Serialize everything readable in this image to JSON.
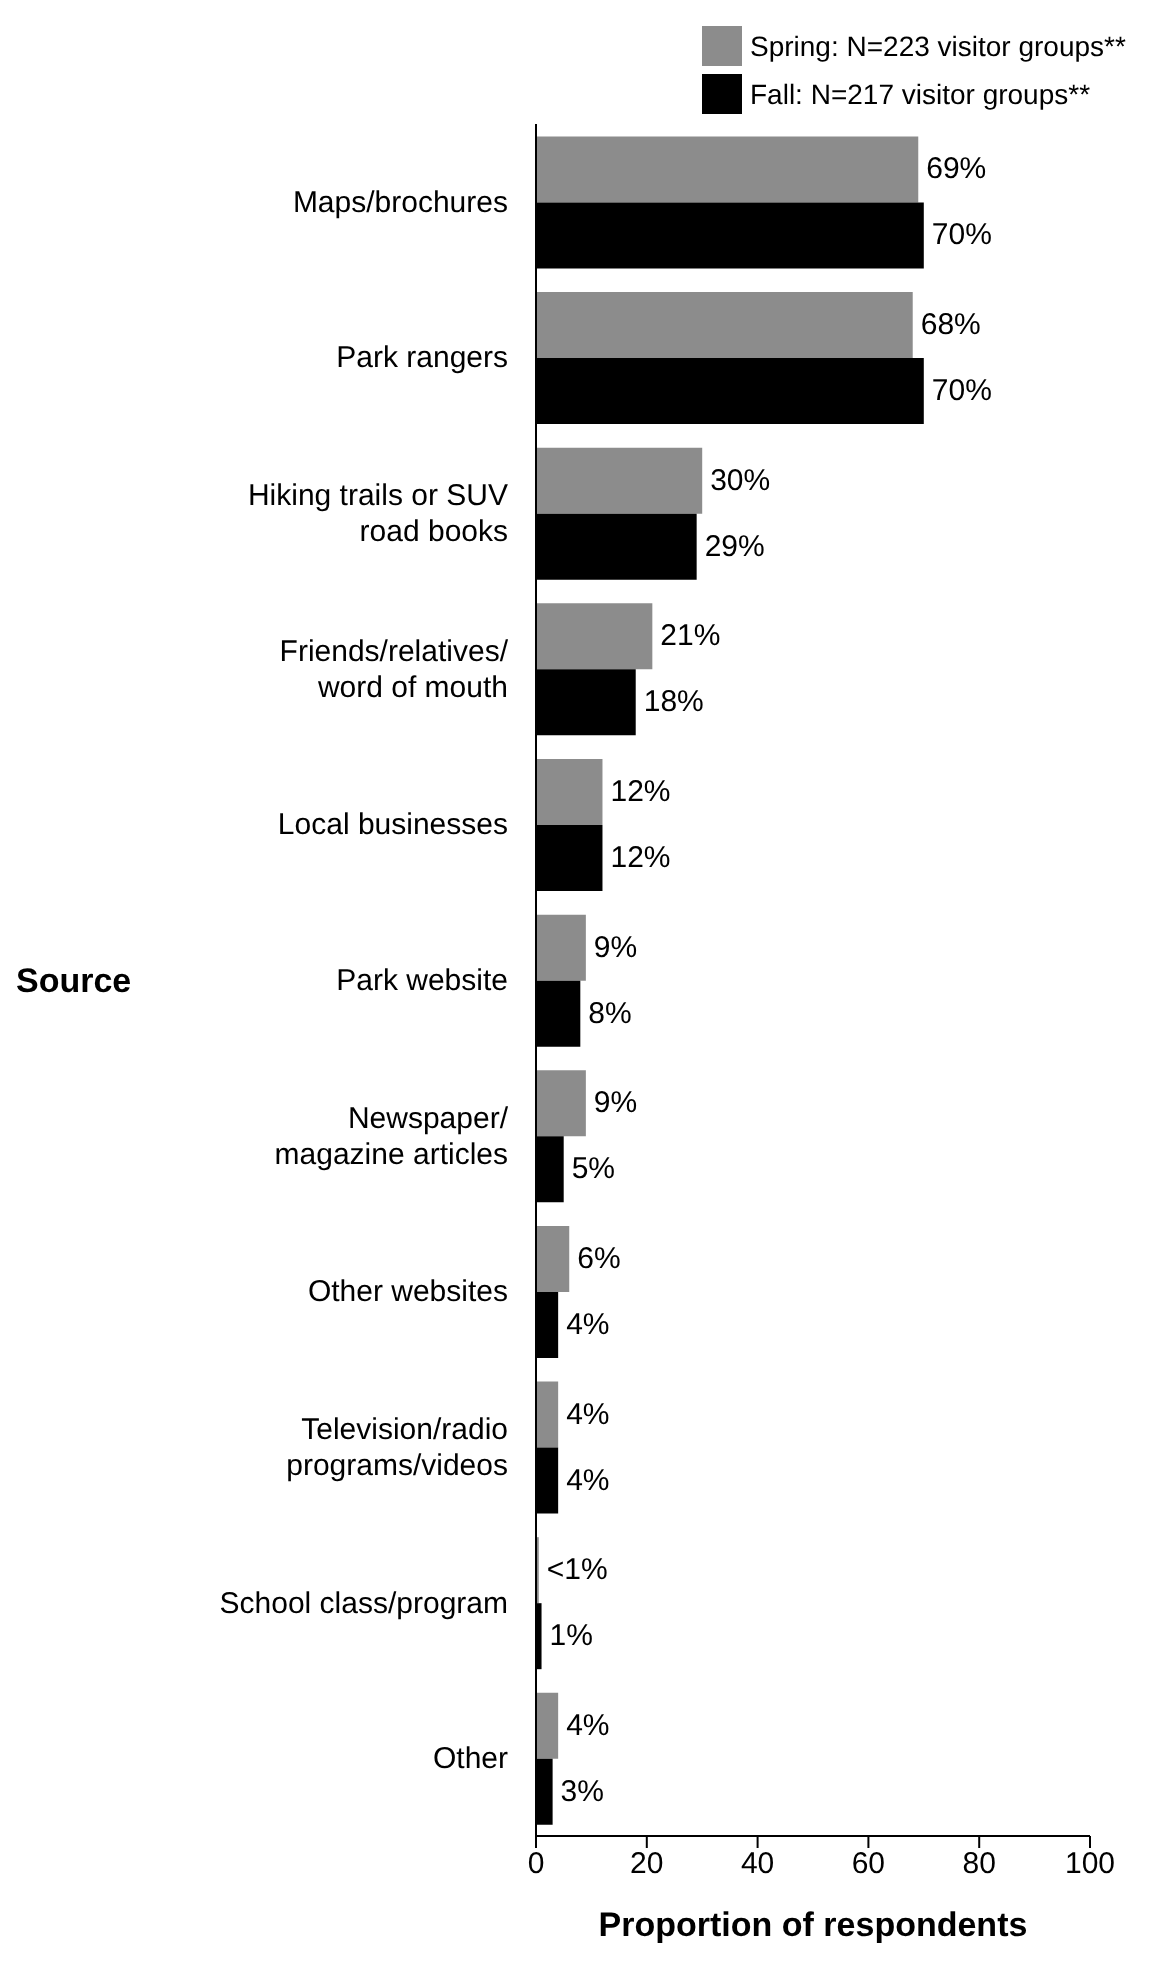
{
  "chart_data": {
    "type": "bar",
    "orientation": "horizontal",
    "ylabel": "Source",
    "xlabel": "Proportion of respondents",
    "categories": [
      "Maps/brochures",
      "Park rangers",
      "Hiking trails or SUV\nroad books",
      "Friends/relatives/\nword of mouth",
      "Local businesses",
      "Park website",
      "Newspaper/\nmagazine articles",
      "Other websites",
      "Television/radio\nprograms/videos",
      "School class/program",
      "Other"
    ],
    "series": [
      {
        "name": "Spring: N=223 visitor groups**",
        "color": "#8c8c8c",
        "values": [
          69,
          68,
          30,
          21,
          12,
          9,
          9,
          6,
          4,
          0.5,
          4
        ],
        "value_labels": [
          "69%",
          "68%",
          "30%",
          "21%",
          "12%",
          "9%",
          "9%",
          "6%",
          "4%",
          "<1%",
          "4%"
        ]
      },
      {
        "name": "Fall: N=217 visitor groups**",
        "color": "#000000",
        "values": [
          70,
          70,
          29,
          18,
          12,
          8,
          5,
          4,
          4,
          1,
          3
        ],
        "value_labels": [
          "70%",
          "70%",
          "29%",
          "18%",
          "12%",
          "8%",
          "5%",
          "4%",
          "4%",
          "1%",
          "3%"
        ]
      }
    ],
    "xlim": [
      0,
      100
    ],
    "xticks": [
      0,
      20,
      40,
      60,
      80,
      100
    ],
    "legend": "top right",
    "grid": false
  }
}
